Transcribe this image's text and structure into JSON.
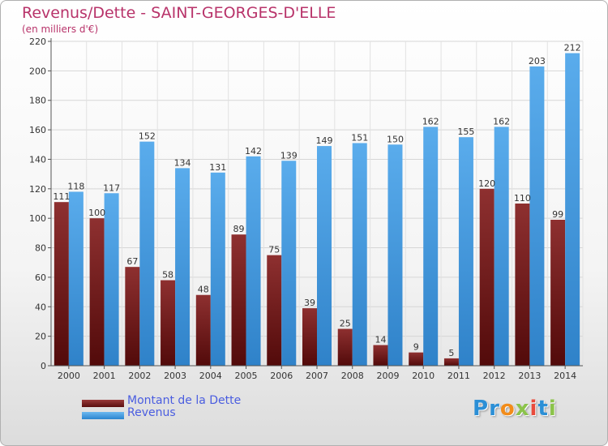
{
  "header": {
    "title": "Revenus/Dette - SAINT-GEORGES-D'ELLE",
    "subtitle": "(en milliers d'€)"
  },
  "chart_data": {
    "type": "bar",
    "categories": [
      "2000",
      "2001",
      "2002",
      "2003",
      "2004",
      "2005",
      "2006",
      "2007",
      "2008",
      "2009",
      "2010",
      "2011",
      "2012",
      "2013",
      "2014"
    ],
    "series": [
      {
        "name": "Montant de la Dette",
        "color": "#7a1f1f",
        "values": [
          111,
          100,
          67,
          58,
          48,
          89,
          75,
          39,
          25,
          14,
          9,
          5,
          120,
          110,
          99
        ]
      },
      {
        "name": "Revenus",
        "color": "#4ea3e6",
        "values": [
          118,
          117,
          152,
          134,
          131,
          142,
          139,
          149,
          151,
          150,
          162,
          155,
          162,
          203,
          212
        ]
      }
    ],
    "yticks": [
      0,
      20,
      40,
      60,
      80,
      100,
      120,
      140,
      160,
      180,
      200,
      220
    ],
    "ylim": [
      0,
      220
    ],
    "grid": true,
    "legend_position": "bottom-left"
  },
  "legend": {
    "items": [
      {
        "label": "Montant de la Dette",
        "color": "#7a1f1f"
      },
      {
        "label": "Revenus",
        "color": "#4ea3e6"
      }
    ]
  },
  "logo": {
    "text": "Proxiti",
    "letters": [
      "P",
      "r",
      "o",
      "x",
      "i",
      "t",
      "i"
    ],
    "colors": [
      "#2b8fd6",
      "#2b8fd6",
      "#f28c1a",
      "#8bc34a",
      "#e94b3c",
      "#2b8fd6",
      "#8bc34a"
    ]
  }
}
